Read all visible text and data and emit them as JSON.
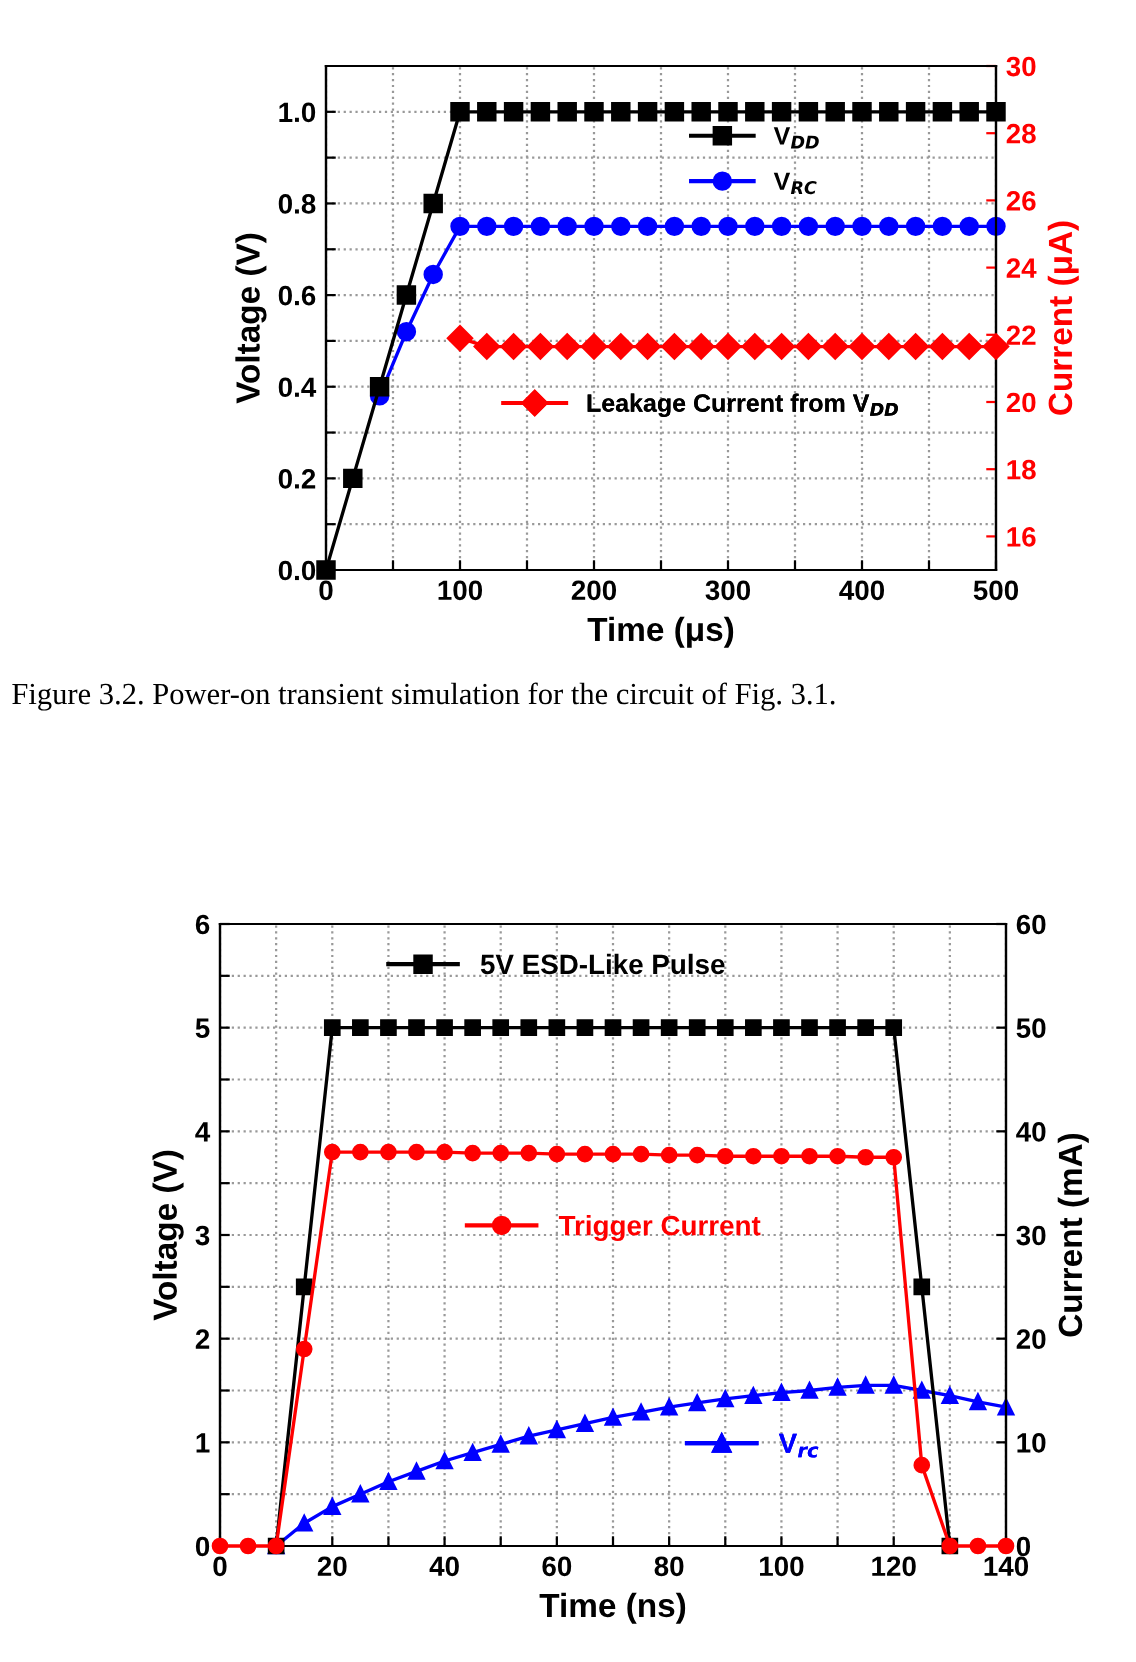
{
  "chart_data": [
    {
      "type": "line",
      "xlabel": "Time (μs)",
      "ylabel": "Voltage (V)",
      "y2label": "Current (μA)",
      "xlim": [
        0,
        500
      ],
      "xticks": [
        0,
        {
          "value": 50,
          "label": null
        },
        100,
        {
          "value": 150,
          "label": null
        },
        200,
        {
          "value": 250,
          "label": null
        },
        300,
        {
          "value": 350,
          "label": null
        },
        400,
        {
          "value": 450,
          "label": null
        },
        500
      ],
      "ylim": [
        0,
        1.1
      ],
      "yticks": [
        {
          "value": 0,
          "label": "0.0"
        },
        {
          "value": 0.1,
          "label": null
        },
        {
          "value": 0.2,
          "label": "0.2"
        },
        {
          "value": 0.3,
          "label": null
        },
        {
          "value": 0.4,
          "label": "0.4"
        },
        {
          "value": 0.5,
          "label": null
        },
        {
          "value": 0.6,
          "label": "0.6"
        },
        {
          "value": 0.7,
          "label": null
        },
        {
          "value": 0.8,
          "label": "0.8"
        },
        {
          "value": 0.9,
          "label": null
        },
        {
          "value": 1.0,
          "label": "1.0"
        }
      ],
      "y2lim": [
        15,
        30
      ],
      "y2ticks": [
        16,
        18,
        20,
        22,
        24,
        26,
        28,
        30
      ],
      "grid": true,
      "legend": "top right",
      "annotations": [
        "Figure 3.2. Power-on transient simulation for the circuit of Fig. 3.1."
      ],
      "series": [
        {
          "name": "V$_{DD}$",
          "color": "#000000",
          "marker": "square",
          "x": [
            0,
            20,
            40,
            60,
            80,
            100,
            120,
            140,
            160,
            180,
            200,
            220,
            240,
            260,
            280,
            300,
            320,
            340,
            360,
            380,
            400,
            420,
            440,
            460,
            480,
            500
          ],
          "values": [
            0,
            0.2,
            0.4,
            0.6,
            0.8,
            1.0,
            1.0,
            1.0,
            1.0,
            1.0,
            1.0,
            1.0,
            1.0,
            1.0,
            1.0,
            1.0,
            1.0,
            1.0,
            1.0,
            1.0,
            1.0,
            1.0,
            1.0,
            1.0,
            1.0,
            1.0
          ]
        },
        {
          "name": "V$_{RC}$",
          "color": "#0000ff",
          "marker": "circle",
          "x": [
            40,
            60,
            80,
            100,
            120,
            140,
            160,
            180,
            200,
            220,
            240,
            260,
            280,
            300,
            320,
            340,
            360,
            380,
            400,
            420,
            440,
            460,
            480,
            500
          ],
          "values": [
            0.38,
            0.52,
            0.645,
            0.75,
            0.75,
            0.75,
            0.75,
            0.75,
            0.75,
            0.75,
            0.75,
            0.75,
            0.75,
            0.75,
            0.75,
            0.75,
            0.75,
            0.75,
            0.75,
            0.75,
            0.75,
            0.75,
            0.75,
            0.75
          ]
        },
        {
          "name": "Leakage Current from V$_{DD}$",
          "color": "#ff0000",
          "marker": "diamond",
          "axis": "y2",
          "x": [
            100,
            120,
            140,
            160,
            180,
            200,
            220,
            240,
            260,
            280,
            300,
            320,
            340,
            360,
            380,
            400,
            420,
            440,
            460,
            480,
            500
          ],
          "values": [
            21.9,
            21.65,
            21.65,
            21.65,
            21.65,
            21.65,
            21.65,
            21.65,
            21.65,
            21.65,
            21.65,
            21.65,
            21.65,
            21.65,
            21.65,
            21.65,
            21.65,
            21.65,
            21.65,
            21.65,
            21.65
          ]
        }
      ]
    },
    {
      "type": "line",
      "xlabel": "Time (ns)",
      "ylabel": "Voltage (V)",
      "y2label": "Current (mA)",
      "xlim": [
        0,
        140
      ],
      "xticks": [
        0,
        {
          "value": 10,
          "label": null
        },
        20,
        {
          "value": 30,
          "label": null
        },
        40,
        {
          "value": 50,
          "label": null
        },
        60,
        {
          "value": 70,
          "label": null
        },
        80,
        {
          "value": 90,
          "label": null
        },
        100,
        {
          "value": 110,
          "label": null
        },
        120,
        {
          "value": 130,
          "label": null
        },
        140
      ],
      "ylim": [
        0,
        6
      ],
      "yticks": [
        0,
        {
          "value": 0.5,
          "label": null
        },
        1,
        {
          "value": 1.5,
          "label": null
        },
        2,
        {
          "value": 2.5,
          "label": null
        },
        3,
        {
          "value": 3.5,
          "label": null
        },
        4,
        {
          "value": 4.5,
          "label": null
        },
        5,
        {
          "value": 5.5,
          "label": null
        },
        6
      ],
      "y2lim": [
        0,
        60
      ],
      "y2ticks": [
        0,
        10,
        20,
        30,
        40,
        50,
        60
      ],
      "grid": true,
      "legend": "top",
      "series": [
        {
          "name": "5V ESD-Like Pulse",
          "color": "#000000",
          "marker": "square",
          "x": [
            10,
            15,
            20,
            25,
            30,
            35,
            40,
            45,
            50,
            55,
            60,
            65,
            70,
            75,
            80,
            85,
            90,
            95,
            100,
            105,
            110,
            115,
            120,
            125,
            130
          ],
          "values": [
            0,
            2.5,
            5,
            5,
            5,
            5,
            5,
            5,
            5,
            5,
            5,
            5,
            5,
            5,
            5,
            5,
            5,
            5,
            5,
            5,
            5,
            5,
            5,
            2.5,
            0
          ]
        },
        {
          "name": "Trigger Current",
          "color": "#ff0000",
          "marker": "circle",
          "axis": "y2",
          "x": [
            0,
            5,
            10,
            15,
            20,
            25,
            30,
            35,
            40,
            45,
            50,
            55,
            60,
            65,
            70,
            75,
            80,
            85,
            90,
            95,
            100,
            105,
            110,
            115,
            120,
            125,
            130,
            135,
            140
          ],
          "values": [
            0,
            0,
            0,
            19,
            38,
            38,
            38,
            38,
            38,
            37.9,
            37.9,
            37.9,
            37.8,
            37.8,
            37.8,
            37.8,
            37.7,
            37.7,
            37.6,
            37.6,
            37.6,
            37.6,
            37.6,
            37.5,
            37.5,
            7.8,
            0,
            0,
            0
          ]
        },
        {
          "name": "V$_{rc}$",
          "color": "#0000ff",
          "marker": "triangle",
          "x": [
            10,
            15,
            20,
            25,
            30,
            35,
            40,
            45,
            50,
            55,
            60,
            65,
            70,
            75,
            80,
            85,
            90,
            95,
            100,
            105,
            110,
            115,
            120,
            125,
            130,
            135,
            140
          ],
          "values": [
            0,
            0.22,
            0.38,
            0.5,
            0.62,
            0.72,
            0.82,
            0.9,
            0.98,
            1.06,
            1.12,
            1.18,
            1.24,
            1.29,
            1.34,
            1.38,
            1.42,
            1.45,
            1.48,
            1.5,
            1.53,
            1.55,
            1.55,
            1.5,
            1.45,
            1.39,
            1.34
          ]
        }
      ]
    }
  ]
}
